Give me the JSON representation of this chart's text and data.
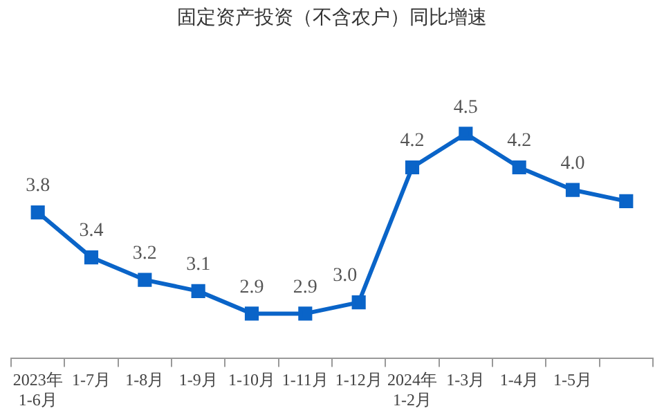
{
  "chart_data": {
    "type": "line",
    "title": "固定资产投资（不含农户）同比增速",
    "categories": [
      "2023年 1-6月",
      "1-7月",
      "1-8月",
      "1-9月",
      "1-10月",
      "1-11月",
      "1-12月",
      "2024年 1-2月",
      "1-3月",
      "1-4月",
      "1-5月",
      null
    ],
    "series": [
      {
        "color": "#0a64c8",
        "values": [
          3.8,
          3.4,
          3.2,
          3.1,
          2.9,
          2.9,
          3.0,
          4.2,
          4.5,
          4.2,
          4.0,
          3.9
        ],
        "value_labels": [
          "3.8",
          "3.4",
          "3.2",
          "3.1",
          "2.9",
          "2.9",
          "3.0",
          "4.2",
          "4.5",
          "4.2",
          "4.0",
          null
        ]
      }
    ],
    "marker": "square",
    "grid": false,
    "legend": false
  }
}
